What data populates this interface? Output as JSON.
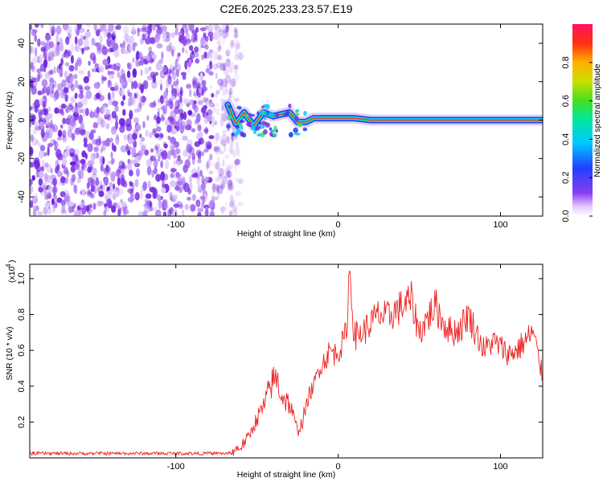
{
  "title": "C2E6.2025.233.23.57.E19",
  "colors": {
    "spectrogram_noise": "#7b2ee0",
    "snr_line": "#ee2222",
    "axis": "#000000"
  },
  "chart_data": [
    {
      "type": "heatmap",
      "title": "C2E6.2025.233.23.57.E19",
      "xlabel": "Height of straight line (km)",
      "ylabel": "Frequency (Hz)",
      "xlim": [
        -190,
        126
      ],
      "ylim": [
        -50,
        50
      ],
      "xticks": [
        -100,
        0,
        100
      ],
      "yticks": [
        -40,
        -20,
        0,
        20,
        40
      ],
      "noise_region_x": [
        -190,
        -65
      ],
      "signal_trace": [
        {
          "x": -68,
          "y": 8
        },
        {
          "x": -63,
          "y": -2
        },
        {
          "x": -58,
          "y": 4
        },
        {
          "x": -52,
          "y": -3
        },
        {
          "x": -46,
          "y": 4
        },
        {
          "x": -40,
          "y": 2
        },
        {
          "x": -35,
          "y": 3
        },
        {
          "x": -30,
          "y": 4
        },
        {
          "x": -25,
          "y": -1
        },
        {
          "x": -20,
          "y": -1
        },
        {
          "x": -15,
          "y": 1
        },
        {
          "x": -10,
          "y": 1
        },
        {
          "x": 0,
          "y": 1
        },
        {
          "x": 10,
          "y": 1
        },
        {
          "x": 20,
          "y": 0
        },
        {
          "x": 40,
          "y": 0
        },
        {
          "x": 60,
          "y": 0
        },
        {
          "x": 80,
          "y": 0
        },
        {
          "x": 100,
          "y": 0
        },
        {
          "x": 126,
          "y": 0
        }
      ],
      "colorbar": {
        "label": "Normalized spectral amplitude",
        "range": [
          0,
          1
        ],
        "ticks": [
          "0.0",
          "0.2",
          "0.4",
          "0.6",
          "0.8"
        ]
      }
    },
    {
      "type": "line",
      "xlabel": "Height of straight line (km)",
      "ylabel": "SNR (10 * v/v)",
      "y_multiplier_label": "(x10",
      "y_multiplier_exp": "4",
      "xlim": [
        -190,
        126
      ],
      "ylim": [
        0,
        1.08
      ],
      "xticks": [
        -100,
        0,
        100
      ],
      "yticks": [
        "0.2",
        "0.4",
        "0.6",
        "0.8",
        "1.0"
      ],
      "series": [
        {
          "name": "SNR",
          "x": [
            -190,
            -170,
            -150,
            -130,
            -110,
            -90,
            -70,
            -65,
            -60,
            -55,
            -50,
            -45,
            -42,
            -38,
            -35,
            -30,
            -25,
            -22,
            -18,
            -15,
            -12,
            -8,
            -5,
            -2,
            2,
            5,
            7,
            10,
            15,
            20,
            25,
            30,
            35,
            40,
            45,
            50,
            55,
            60,
            65,
            70,
            75,
            80,
            85,
            90,
            95,
            100,
            105,
            110,
            115,
            120,
            126
          ],
          "y": [
            0.02,
            0.02,
            0.02,
            0.02,
            0.02,
            0.02,
            0.02,
            0.04,
            0.06,
            0.12,
            0.22,
            0.3,
            0.4,
            0.45,
            0.35,
            0.3,
            0.15,
            0.2,
            0.35,
            0.4,
            0.5,
            0.55,
            0.6,
            0.58,
            0.62,
            0.7,
            1.05,
            0.68,
            0.7,
            0.75,
            0.8,
            0.78,
            0.82,
            0.85,
            0.88,
            0.7,
            0.78,
            0.85,
            0.75,
            0.7,
            0.72,
            0.8,
            0.7,
            0.6,
            0.65,
            0.62,
            0.58,
            0.6,
            0.65,
            0.7,
            0.45
          ]
        }
      ]
    }
  ]
}
